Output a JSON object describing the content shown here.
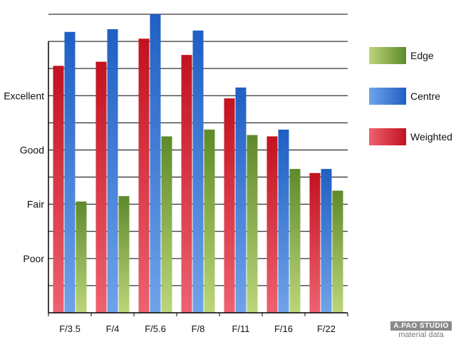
{
  "chart_data": {
    "type": "bar",
    "categories": [
      "F/3.5",
      "F/4",
      "F/5.6",
      "F/8",
      "F/11",
      "F/16",
      "F/22"
    ],
    "series": [
      {
        "name": "Weighted",
        "values": [
          9.1,
          9.25,
          10.1,
          9.5,
          7.9,
          6.5,
          5.15
        ],
        "color": "#c2121f",
        "light": "#ee6270"
      },
      {
        "name": "Centre",
        "values": [
          10.35,
          10.45,
          11.0,
          10.4,
          8.3,
          6.75,
          5.3
        ],
        "color": "#1f5fc4",
        "light": "#6fa3ea"
      },
      {
        "name": "Edge",
        "values": [
          4.1,
          4.3,
          6.5,
          6.75,
          6.55,
          5.3,
          4.5
        ],
        "color": "#5e8a2a",
        "light": "#bcd67a"
      }
    ],
    "ytick_labels": [
      {
        "value": 2,
        "label": "Poor"
      },
      {
        "value": 4,
        "label": "Fair"
      },
      {
        "value": 6,
        "label": "Good"
      },
      {
        "value": 8,
        "label": "Excellent"
      }
    ],
    "ylim": [
      0,
      11
    ],
    "grid_step": 1,
    "grid": true,
    "legend_position": "right",
    "legend_order": [
      "Edge",
      "Centre",
      "Weighted"
    ],
    "title": "",
    "xlabel": "",
    "ylabel": ""
  },
  "watermark": {
    "top": "A.PAO STUDIO",
    "bottom": "material data"
  }
}
